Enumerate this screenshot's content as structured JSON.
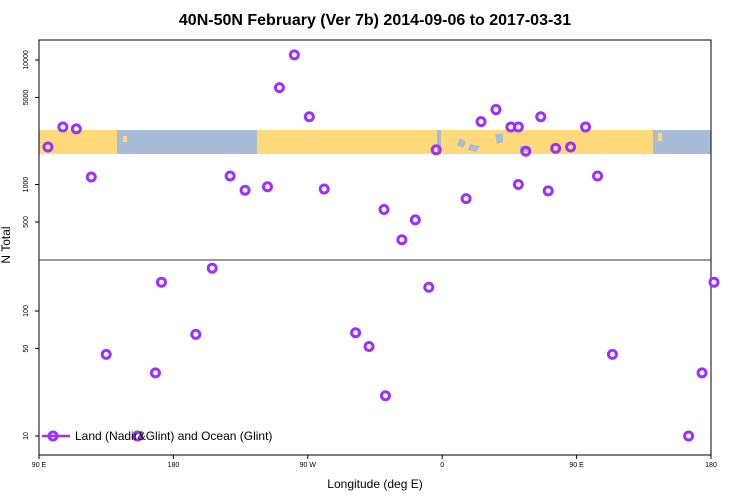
{
  "chart_data": {
    "type": "scatter",
    "title": "40N-50N February (Ver 7b)   2014-09-06 to 2017-03-31",
    "xlabel": "Longitude (deg E)",
    "ylabel": "N Total",
    "x_ticks": [
      {
        "value": 90,
        "label": "90 E"
      },
      {
        "value": 180,
        "label": "180"
      },
      {
        "value": 270,
        "label": "90 W"
      },
      {
        "value": 360,
        "label": "0"
      },
      {
        "value": 450,
        "label": "90 E"
      },
      {
        "value": 540,
        "label": "180"
      }
    ],
    "xlim": [
      90,
      540
    ],
    "y_scale": "log",
    "y_ticks_upper": [
      {
        "value": 500,
        "label": "500"
      },
      {
        "value": 1000,
        "label": "1000"
      },
      {
        "value": 5000,
        "label": "5000"
      },
      {
        "value": 10000,
        "label": "10000"
      }
    ],
    "y_ticks_lower": [
      {
        "value": 10,
        "label": "10"
      },
      {
        "value": 50,
        "label": "50"
      },
      {
        "value": 100,
        "label": "100"
      }
    ],
    "colors": {
      "marker": "#9b30ff",
      "land": "#ffd97a",
      "ocean": "#a8bcd8",
      "axis": "#000000",
      "divider": "#333333"
    },
    "legend": {
      "position": "bottom-left",
      "label": "Land (Nadir&Glint) and Ocean (Glint)"
    },
    "series": [
      {
        "name": "Land (Nadir&Glint) and Ocean (Glint)",
        "panel": "upper",
        "points": [
          {
            "x": 96,
            "y": 2000
          },
          {
            "x": 106,
            "y": 2900
          },
          {
            "x": 115,
            "y": 2800
          },
          {
            "x": 125,
            "y": 1150
          },
          {
            "x": 218,
            "y": 1170
          },
          {
            "x": 228,
            "y": 900
          },
          {
            "x": 243,
            "y": 960
          },
          {
            "x": 251,
            "y": 6000
          },
          {
            "x": 261,
            "y": 11000
          },
          {
            "x": 271,
            "y": 3500
          },
          {
            "x": 281,
            "y": 920
          },
          {
            "x": 411,
            "y": 1000
          },
          {
            "x": 431,
            "y": 890
          },
          {
            "x": 464,
            "y": 1170
          },
          {
            "x": 376,
            "y": 770
          },
          {
            "x": 356,
            "y": 1900
          },
          {
            "x": 386,
            "y": 3200
          },
          {
            "x": 396,
            "y": 4000
          },
          {
            "x": 406,
            "y": 2900
          },
          {
            "x": 416,
            "y": 1850
          },
          {
            "x": 426,
            "y": 3500
          },
          {
            "x": 436,
            "y": 1950
          },
          {
            "x": 446,
            "y": 2000
          },
          {
            "x": 456,
            "y": 2900
          },
          {
            "x": 411,
            "y": 2900
          },
          {
            "x": 321,
            "y": 630
          },
          {
            "x": 333,
            "y": 360
          },
          {
            "x": 342,
            "y": 520
          }
        ]
      },
      {
        "name": "Land (Nadir&Glint) and Ocean (Glint)",
        "panel": "lower",
        "points": [
          {
            "x": 135,
            "y": 45
          },
          {
            "x": 156,
            "y": 10
          },
          {
            "x": 168,
            "y": 32
          },
          {
            "x": 172,
            "y": 170
          },
          {
            "x": 195,
            "y": 65
          },
          {
            "x": 206,
            "y": 220
          },
          {
            "x": 302,
            "y": 67
          },
          {
            "x": 311,
            "y": 52
          },
          {
            "x": 322,
            "y": 21
          },
          {
            "x": 351,
            "y": 155
          },
          {
            "x": 474,
            "y": 45
          },
          {
            "x": 525,
            "y": 10
          },
          {
            "x": 534,
            "y": 32
          },
          {
            "x": 542,
            "y": 170
          }
        ]
      }
    ],
    "grid": false
  }
}
